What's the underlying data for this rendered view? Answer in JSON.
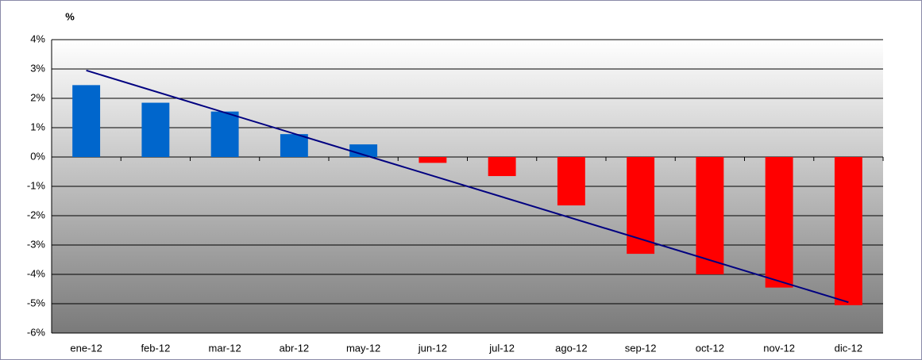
{
  "chart_data": {
    "type": "bar",
    "y_axis_label": "%",
    "categories": [
      "ene-12",
      "feb-12",
      "mar-12",
      "abr-12",
      "may-12",
      "jun-12",
      "jul-12",
      "ago-12",
      "sep-12",
      "oct-12",
      "nov-12",
      "dic-12"
    ],
    "values": [
      2.45,
      1.85,
      1.55,
      0.78,
      0.43,
      -0.2,
      -0.65,
      -1.65,
      -3.3,
      -4.0,
      -4.45,
      -5.05
    ],
    "positive_color": "#0066cc",
    "negative_color": "#ff0000",
    "trendline": [
      2.95,
      -4.95
    ],
    "trendline_color": "#000080",
    "ylim": [
      -6,
      4
    ],
    "yticks": [
      {
        "value": -6,
        "label": "-6%"
      },
      {
        "value": -5,
        "label": "-5%"
      },
      {
        "value": -4,
        "label": "-4%"
      },
      {
        "value": -3,
        "label": "-3%"
      },
      {
        "value": -2,
        "label": "-2%"
      },
      {
        "value": -1,
        "label": "-1%"
      },
      {
        "value": 0,
        "label": "0%"
      },
      {
        "value": 1,
        "label": "1%"
      },
      {
        "value": 2,
        "label": "2%"
      },
      {
        "value": 3,
        "label": "3%"
      },
      {
        "value": 4,
        "label": "4%"
      }
    ],
    "grid": true
  }
}
